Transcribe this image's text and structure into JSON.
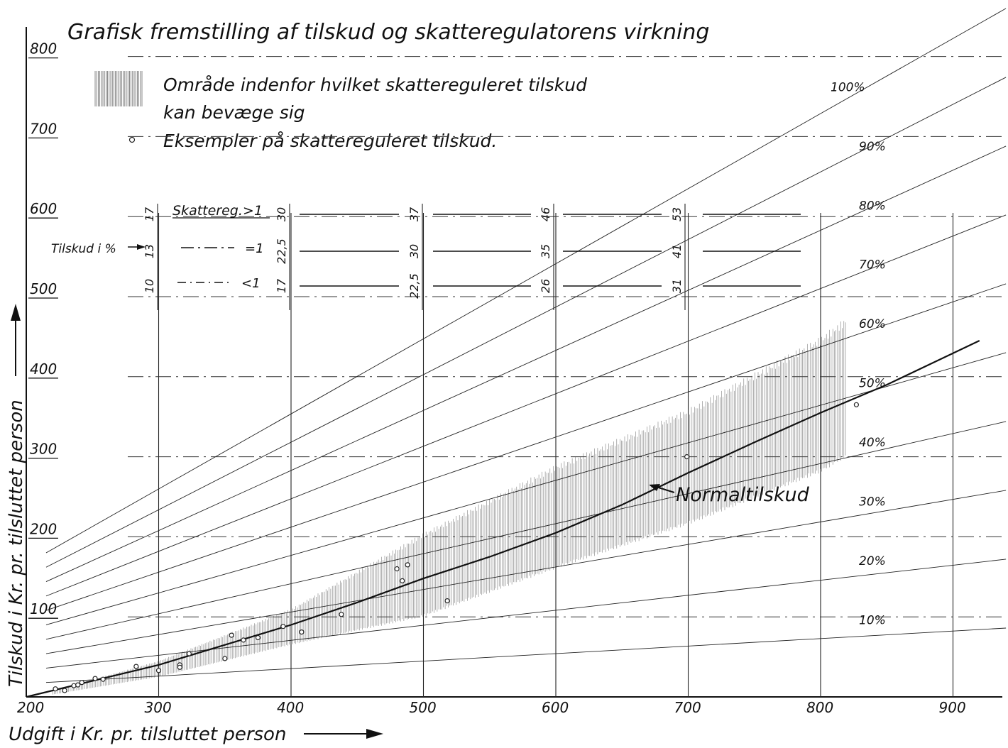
{
  "chart_data": {
    "type": "line",
    "title": "Grafisk fremstilling af tilskud og skatteregulatorens virkning",
    "xlabel": "Udgift i Kr. pr. tilsluttet person",
    "ylabel": "Tilskud i Kr. pr. tilsluttet person",
    "xlim": [
      200,
      940
    ],
    "ylim": [
      0,
      820
    ],
    "x_ticks": [
      200,
      300,
      400,
      500,
      600,
      700,
      800,
      900
    ],
    "y_ticks": [
      100,
      200,
      300,
      400,
      500,
      600,
      700,
      800
    ],
    "x_tick_labels": [
      "200",
      "300",
      "400",
      "500",
      "600",
      "700",
      "800",
      "900"
    ],
    "y_tick_labels": [
      "100",
      "200",
      "300",
      "400",
      "500",
      "600",
      "700",
      "800"
    ],
    "legend": {
      "area_label": "Område indenfor hvilket skattereguleret tilskud",
      "area_label_line2": "kan bevæge sig",
      "points_label": "Eksempler på skattereguleret tilskud."
    },
    "percent_lines": [
      {
        "pct": 10,
        "label": "10%"
      },
      {
        "pct": 20,
        "label": "20%"
      },
      {
        "pct": 30,
        "label": "30%"
      },
      {
        "pct": 40,
        "label": "40%"
      },
      {
        "pct": 50,
        "label": "50%"
      },
      {
        "pct": 60,
        "label": "60%"
      },
      {
        "pct": 70,
        "label": "70%"
      },
      {
        "pct": 80,
        "label": "80%"
      },
      {
        "pct": 90,
        "label": "90%"
      },
      {
        "pct": 100,
        "label": "100%"
      }
    ],
    "normal_series": {
      "name": "Normaltilskud",
      "x": [
        200,
        250,
        300,
        350,
        400,
        450,
        500,
        550,
        600,
        650,
        700,
        750,
        800,
        850,
        920
      ],
      "y": [
        0,
        20,
        40,
        65,
        90,
        118,
        148,
        175,
        205,
        240,
        280,
        318,
        355,
        390,
        445
      ]
    },
    "shaded_region": {
      "x": [
        220,
        300,
        400,
        500,
        600,
        700,
        800,
        820
      ],
      "upper": [
        8,
        45,
        110,
        205,
        290,
        360,
        450,
        475
      ],
      "lower": [
        3,
        25,
        65,
        100,
        160,
        215,
        280,
        300
      ]
    },
    "example_points": {
      "x": [
        222,
        229,
        236,
        239,
        242,
        252,
        258,
        283,
        300,
        316,
        316,
        323,
        350,
        355,
        364,
        375,
        394,
        408,
        438,
        480,
        484,
        488,
        518,
        699,
        827
      ],
      "y": [
        10,
        8,
        14,
        15,
        18,
        23,
        22,
        38,
        33,
        40,
        37,
        54,
        48,
        77,
        71,
        74,
        88,
        81,
        103,
        160,
        145,
        165,
        120,
        300,
        365
      ]
    },
    "table": {
      "row_label": "Tilskud i %",
      "categories": [
        {
          "name": "Skattereg.>1"
        },
        {
          "name": "=1"
        },
        {
          "name": "<1"
        }
      ],
      "columns": [
        {
          "x": 200,
          "values": [
            "17",
            "13",
            "10"
          ]
        },
        {
          "x": 300,
          "values": [
            "30",
            "22,5",
            "17"
          ]
        },
        {
          "x": 400,
          "values": [
            "37",
            "30",
            "22,5"
          ]
        },
        {
          "x": 500,
          "values": [
            "46",
            "35",
            "26"
          ]
        },
        {
          "x": 600,
          "values": [
            "53",
            "41",
            "31"
          ]
        }
      ]
    }
  }
}
